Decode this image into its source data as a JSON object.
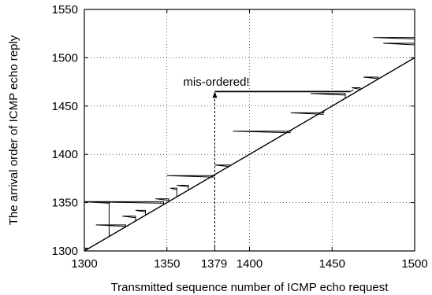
{
  "chart_data": {
    "type": "line",
    "xlabel": "Transmitted sequence number of ICMP echo request",
    "ylabel": "The arrival order of ICMP echo reply",
    "xlim": [
      1300,
      1500
    ],
    "ylim": [
      1300,
      1550
    ],
    "xticks": [
      "1300",
      "1350",
      "1400",
      "1450",
      "1500"
    ],
    "extra_xtick": {
      "value": 1379,
      "label": "1379"
    },
    "yticks": [
      "1300",
      "1350",
      "1400",
      "1450",
      "1500",
      "1550"
    ],
    "grid": true,
    "series": [
      {
        "style": "solid-black",
        "diagonal": [
          [
            1300,
            1300
          ],
          [
            1500,
            1500
          ]
        ],
        "reorder_spikes": [
          {
            "x": 1302,
            "y_low": 1302,
            "y_high": 1303,
            "left_x": 1300
          },
          {
            "x": 1315,
            "y_low": 1315,
            "y_high": 1351,
            "left_x": 1300
          },
          {
            "x": 1325,
            "y_low": 1325,
            "y_high": 1327,
            "left_x": 1307
          },
          {
            "x": 1331,
            "y_low": 1331,
            "y_high": 1336,
            "left_x": 1323
          },
          {
            "x": 1337,
            "y_low": 1337,
            "y_high": 1342,
            "left_x": 1331
          },
          {
            "x": 1348,
            "y_low": 1348,
            "y_high": 1351,
            "left_x": 1300
          },
          {
            "x": 1351,
            "y_low": 1351,
            "y_high": 1354,
            "left_x": 1343
          },
          {
            "x": 1356,
            "y_low": 1356,
            "y_high": 1365,
            "left_x": 1352
          },
          {
            "x": 1363,
            "y_low": 1363,
            "y_high": 1368,
            "left_x": 1356
          },
          {
            "x": 1379,
            "y_low": 1379,
            "y_high": 1378,
            "left_x": 1350
          },
          {
            "x": 1388,
            "y_low": 1388,
            "y_high": 1389,
            "left_x": 1379
          },
          {
            "x": 1425,
            "y_low": 1425,
            "y_high": 1424,
            "left_x": 1390
          },
          {
            "x": 1445,
            "y_low": 1445,
            "y_high": 1443,
            "left_x": 1425
          },
          {
            "x": 1458,
            "y_low": 1458,
            "y_high": 1463,
            "left_x": 1437
          },
          {
            "x": 1467,
            "y_low": 1467,
            "y_high": 1469,
            "left_x": 1462
          },
          {
            "x": 1478,
            "y_low": 1478,
            "y_high": 1480,
            "left_x": 1469
          },
          {
            "x": 1500,
            "y_low": 1500,
            "y_high": 1515,
            "left_x": 1481
          },
          {
            "x": 1500,
            "y_low": 1500,
            "y_high": 1521,
            "left_x": 1475
          }
        ],
        "highlight_segment": {
          "from_x": 1379,
          "to_x": 1461,
          "y": 1465
        }
      }
    ],
    "annotations": [
      {
        "text": "mis-ordered!",
        "x": 1379,
        "y": 1472,
        "arrow_from_y": 1300,
        "arrow_to_y": 1465
      }
    ]
  }
}
